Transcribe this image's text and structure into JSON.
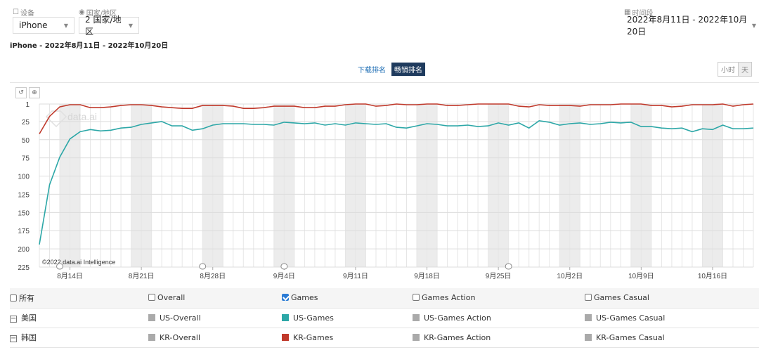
{
  "filters": {
    "device_label": "设备",
    "device_value": "iPhone",
    "country_label": "国家/地区",
    "country_value": "2 国家/地区",
    "period_label": "时间段",
    "period_value": "2022年8月11日 - 2022年10月20日"
  },
  "subtitle": "iPhone - 2022年8月11日 - 2022年10月20日",
  "rank_toggle": {
    "download": "下载排名",
    "grossing": "畅销排名",
    "active": "grossing"
  },
  "time_toggle": {
    "hour": "小时",
    "day": "天",
    "active": "day"
  },
  "chart_data": {
    "type": "line",
    "ylabel": "",
    "xlabel": "",
    "yticks": [
      1,
      25,
      50,
      75,
      100,
      125,
      150,
      175,
      200,
      225
    ],
    "ylim": [
      1,
      225
    ],
    "y_inverted": true,
    "x_start": "2022-08-11",
    "x_tick_labels": [
      "8月14日",
      "8月21日",
      "8月28日",
      "9月4日",
      "9月11日",
      "9月18日",
      "9月25日",
      "10月2日",
      "10月9日",
      "10月16日"
    ],
    "weekend_shading": true,
    "watermark": "data.ai",
    "copyright": "©2022 data.ai Intelligence",
    "series": [
      {
        "name": "KR-Games",
        "color": "#c0392b",
        "values": [
          42,
          18,
          5,
          2,
          2,
          6,
          6,
          5,
          3,
          2,
          2,
          3,
          5,
          6,
          7,
          7,
          3,
          3,
          3,
          4,
          7,
          7,
          6,
          4,
          4,
          4,
          6,
          6,
          4,
          4,
          2,
          1,
          1,
          4,
          3,
          1,
          2,
          2,
          1,
          1,
          3,
          3,
          2,
          1,
          1,
          1,
          1,
          4,
          5,
          2,
          3,
          3,
          3,
          4,
          2,
          2,
          2,
          1,
          1,
          1,
          3,
          3,
          5,
          4,
          2,
          2,
          2,
          1,
          4,
          2,
          1
        ]
      },
      {
        "name": "US-Games",
        "color": "#2ca7a7",
        "values": [
          194,
          112,
          74,
          49,
          39,
          36,
          38,
          37,
          34,
          33,
          29,
          27,
          25,
          31,
          31,
          37,
          35,
          30,
          28,
          28,
          28,
          29,
          29,
          30,
          26,
          27,
          28,
          27,
          30,
          28,
          30,
          27,
          28,
          29,
          28,
          33,
          34,
          31,
          28,
          29,
          31,
          31,
          30,
          32,
          31,
          27,
          30,
          27,
          34,
          24,
          26,
          30,
          28,
          27,
          29,
          28,
          26,
          27,
          26,
          32,
          32,
          34,
          35,
          34,
          39,
          35,
          36,
          30,
          35,
          35,
          34
        ]
      }
    ]
  },
  "legend": {
    "header": [
      "所有",
      "Overall",
      "Games",
      "Games Action",
      "Games Casual"
    ],
    "header_checked": [
      false,
      false,
      true,
      false,
      false
    ],
    "rows": [
      {
        "country": "美国",
        "items": [
          "US-Overall",
          "US-Games",
          "US-Games Action",
          "US-Games Casual"
        ],
        "colors": [
          "#aaaaaa",
          "#2ca7a7",
          "#aaaaaa",
          "#aaaaaa"
        ]
      },
      {
        "country": "韩国",
        "items": [
          "KR-Overall",
          "KR-Games",
          "KR-Games Action",
          "KR-Games Casual"
        ],
        "colors": [
          "#aaaaaa",
          "#c0392b",
          "#aaaaaa",
          "#aaaaaa"
        ]
      }
    ]
  }
}
